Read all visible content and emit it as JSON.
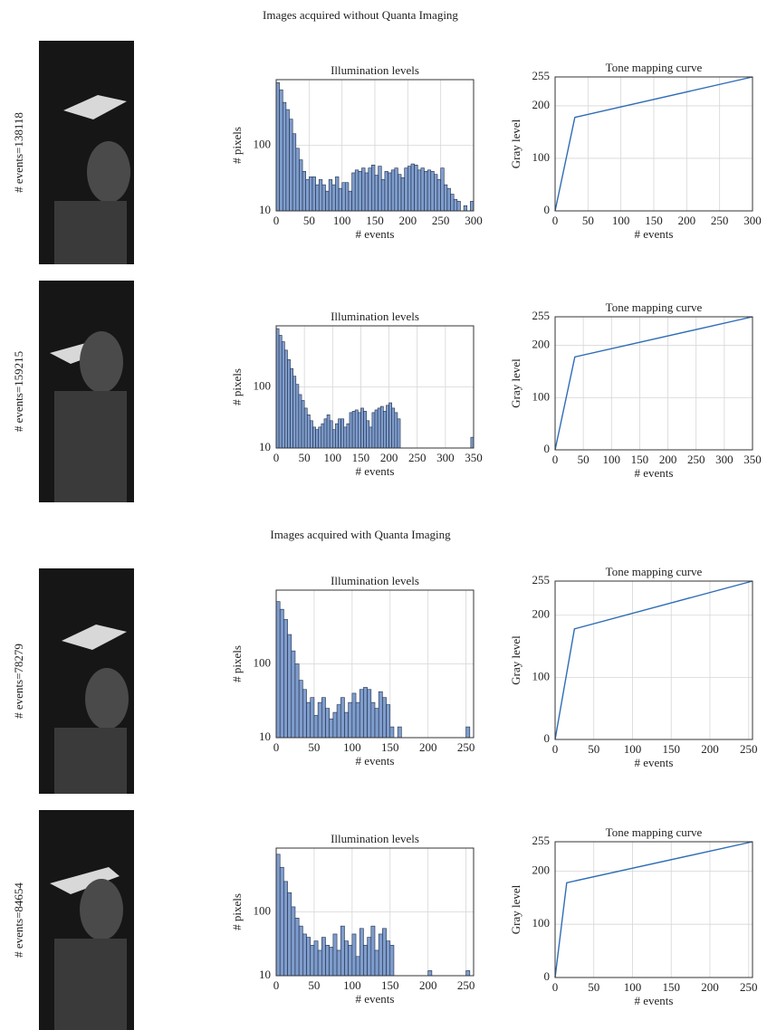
{
  "sections": [
    "Images acquired without Quanta Imaging",
    "Images acquired with Quanta Imaging"
  ],
  "images": [
    {
      "label": "# events=138118"
    },
    {
      "label": "# events=159215"
    },
    {
      "label": "# events=78279"
    },
    {
      "label": "# events=84654"
    }
  ],
  "chart_data": [
    {
      "type": "histogram",
      "title": "Illumination levels",
      "x_label": "# events",
      "y_label": "# pixels",
      "color": "#7f9dcc",
      "edge_color": "#1f2d4a",
      "bins": [
        0,
        5,
        10,
        15,
        20,
        25,
        30,
        35,
        40,
        45,
        50,
        55,
        60,
        65,
        70,
        75,
        80,
        85,
        90,
        95,
        100,
        105,
        110,
        115,
        120,
        125,
        130,
        135,
        140,
        145,
        150,
        155,
        160,
        165,
        170,
        175,
        180,
        185,
        190,
        195,
        200,
        205,
        210,
        215,
        220,
        225,
        230,
        235,
        240,
        245,
        250,
        255,
        260,
        265,
        270,
        275,
        280,
        285,
        290,
        295,
        300
      ],
      "counts": [
        900,
        700,
        450,
        350,
        250,
        150,
        90,
        60,
        40,
        30,
        33,
        33,
        25,
        30,
        25,
        20,
        30,
        25,
        33,
        22,
        27,
        27,
        20,
        38,
        42,
        40,
        45,
        38,
        45,
        50,
        35,
        48,
        30,
        40,
        38,
        42,
        45,
        36,
        32,
        45,
        48,
        52,
        50,
        42,
        45,
        40,
        42,
        40,
        36,
        30,
        45,
        25,
        22,
        18,
        15,
        14,
        10,
        12,
        10,
        14
      ],
      "xlim": [
        0,
        300
      ],
      "xticks": [
        0,
        50,
        100,
        150,
        200,
        250,
        300
      ],
      "ylim": [
        10,
        1000
      ],
      "yticks": [
        10,
        100
      ],
      "y_scale": "log",
      "grid": true
    },
    {
      "type": "line",
      "title": "Tone mapping curve",
      "x_label": "# events",
      "y_label": "Gray level",
      "color": "#2f6db5",
      "x": [
        0,
        30,
        300
      ],
      "values": [
        0,
        178,
        255
      ],
      "xlim": [
        0,
        300
      ],
      "xticks": [
        0,
        50,
        100,
        150,
        200,
        250,
        300
      ],
      "ylim": [
        0,
        255
      ],
      "yticks": [
        0,
        100,
        200,
        255
      ],
      "grid": true
    },
    {
      "type": "histogram",
      "title": "Illumination levels",
      "x_label": "# events",
      "y_label": "# pixels",
      "color": "#7f9dcc",
      "edge_color": "#1f2d4a",
      "bins": [
        0,
        5,
        10,
        15,
        20,
        25,
        30,
        35,
        40,
        45,
        50,
        55,
        60,
        65,
        70,
        75,
        80,
        85,
        90,
        95,
        100,
        105,
        110,
        115,
        120,
        125,
        130,
        135,
        140,
        145,
        150,
        155,
        160,
        165,
        170,
        175,
        180,
        185,
        190,
        195,
        200,
        205,
        210,
        215,
        220,
        225,
        230,
        235,
        240,
        245,
        250,
        255,
        260,
        265,
        270,
        275,
        280,
        285,
        290,
        295,
        300,
        305,
        310,
        315,
        320,
        325,
        330,
        335,
        340,
        345,
        350
      ],
      "counts": [
        900,
        700,
        550,
        400,
        280,
        200,
        150,
        110,
        75,
        60,
        45,
        35,
        28,
        22,
        20,
        22,
        25,
        30,
        35,
        28,
        20,
        25,
        30,
        30,
        22,
        25,
        38,
        40,
        42,
        38,
        45,
        40,
        28,
        22,
        38,
        42,
        45,
        48,
        40,
        50,
        55,
        45,
        38,
        30,
        10,
        10,
        10,
        10,
        10,
        10,
        10,
        10,
        10,
        10,
        10,
        10,
        10,
        10,
        10,
        10,
        10,
        10,
        10,
        10,
        10,
        10,
        10,
        10,
        10,
        15
      ],
      "xlim": [
        0,
        350
      ],
      "xticks": [
        0,
        50,
        100,
        150,
        200,
        250,
        300,
        350
      ],
      "ylim": [
        10,
        1000
      ],
      "yticks": [
        10,
        100
      ],
      "y_scale": "log",
      "grid": true
    },
    {
      "type": "line",
      "title": "Tone mapping curve",
      "x_label": "# events",
      "y_label": "Gray level",
      "color": "#2f6db5",
      "x": [
        0,
        35,
        350
      ],
      "values": [
        0,
        178,
        255
      ],
      "xlim": [
        0,
        350
      ],
      "xticks": [
        0,
        50,
        100,
        150,
        200,
        250,
        300,
        350
      ],
      "ylim": [
        0,
        255
      ],
      "yticks": [
        0,
        100,
        200,
        255
      ],
      "grid": true
    },
    {
      "type": "histogram",
      "title": "Illumination levels",
      "x_label": "# events",
      "y_label": "# pixels",
      "color": "#7f9dcc",
      "edge_color": "#1f2d4a",
      "bins": [
        0,
        5,
        10,
        15,
        20,
        25,
        30,
        35,
        40,
        45,
        50,
        55,
        60,
        65,
        70,
        75,
        80,
        85,
        90,
        95,
        100,
        105,
        110,
        115,
        120,
        125,
        130,
        135,
        140,
        145,
        150,
        155,
        160,
        165,
        170,
        175,
        180,
        185,
        190,
        195,
        200,
        205,
        210,
        215,
        220,
        225,
        230,
        235,
        240,
        245,
        250,
        255
      ],
      "counts": [
        700,
        550,
        400,
        250,
        150,
        100,
        60,
        45,
        30,
        35,
        20,
        30,
        35,
        25,
        18,
        22,
        28,
        35,
        22,
        30,
        40,
        30,
        45,
        48,
        45,
        30,
        25,
        42,
        35,
        28,
        14,
        10,
        14,
        10,
        10,
        10,
        10,
        10,
        10,
        10,
        10,
        10,
        10,
        10,
        10,
        10,
        10,
        10,
        10,
        10,
        14
      ],
      "xlim": [
        0,
        260
      ],
      "xticks": [
        0,
        50,
        100,
        150,
        200,
        250
      ],
      "ylim": [
        10,
        1000
      ],
      "yticks": [
        10,
        100
      ],
      "y_scale": "log",
      "grid": true
    },
    {
      "type": "line",
      "title": "Tone mapping curve",
      "x_label": "# events",
      "y_label": "Gray level",
      "color": "#2f6db5",
      "x": [
        0,
        25,
        255
      ],
      "values": [
        0,
        178,
        255
      ],
      "xlim": [
        0,
        255
      ],
      "xticks": [
        0,
        50,
        100,
        150,
        200,
        250
      ],
      "ylim": [
        0,
        255
      ],
      "yticks": [
        0,
        100,
        200,
        255
      ],
      "grid": true
    },
    {
      "type": "histogram",
      "title": "Illumination levels",
      "x_label": "# events",
      "y_label": "# pixels",
      "color": "#7f9dcc",
      "edge_color": "#1f2d4a",
      "bins": [
        0,
        5,
        10,
        15,
        20,
        25,
        30,
        35,
        40,
        45,
        50,
        55,
        60,
        65,
        70,
        75,
        80,
        85,
        90,
        95,
        100,
        105,
        110,
        115,
        120,
        125,
        130,
        135,
        140,
        145,
        150,
        155,
        160,
        165,
        170,
        175,
        180,
        185,
        190,
        195,
        200,
        205,
        210,
        215,
        220,
        225,
        230,
        235,
        240,
        245,
        250,
        255
      ],
      "counts": [
        800,
        500,
        300,
        200,
        120,
        80,
        60,
        45,
        40,
        30,
        35,
        25,
        40,
        30,
        28,
        45,
        25,
        60,
        35,
        30,
        45,
        20,
        55,
        30,
        40,
        60,
        25,
        45,
        55,
        35,
        30,
        10,
        10,
        10,
        10,
        10,
        10,
        10,
        10,
        10,
        12,
        10,
        10,
        10,
        10,
        10,
        10,
        10,
        10,
        10,
        12
      ],
      "xlim": [
        0,
        260
      ],
      "xticks": [
        0,
        50,
        100,
        150,
        200,
        250
      ],
      "ylim": [
        10,
        1000
      ],
      "yticks": [
        10,
        100
      ],
      "y_scale": "log",
      "grid": true
    },
    {
      "type": "line",
      "title": "Tone mapping curve",
      "x_label": "# events",
      "y_label": "Gray level",
      "color": "#2f6db5",
      "x": [
        0,
        15,
        255
      ],
      "values": [
        0,
        178,
        255
      ],
      "xlim": [
        0,
        255
      ],
      "xticks": [
        0,
        50,
        100,
        150,
        200,
        250
      ],
      "ylim": [
        0,
        255
      ],
      "yticks": [
        0,
        100,
        200,
        255
      ],
      "grid": true
    }
  ]
}
